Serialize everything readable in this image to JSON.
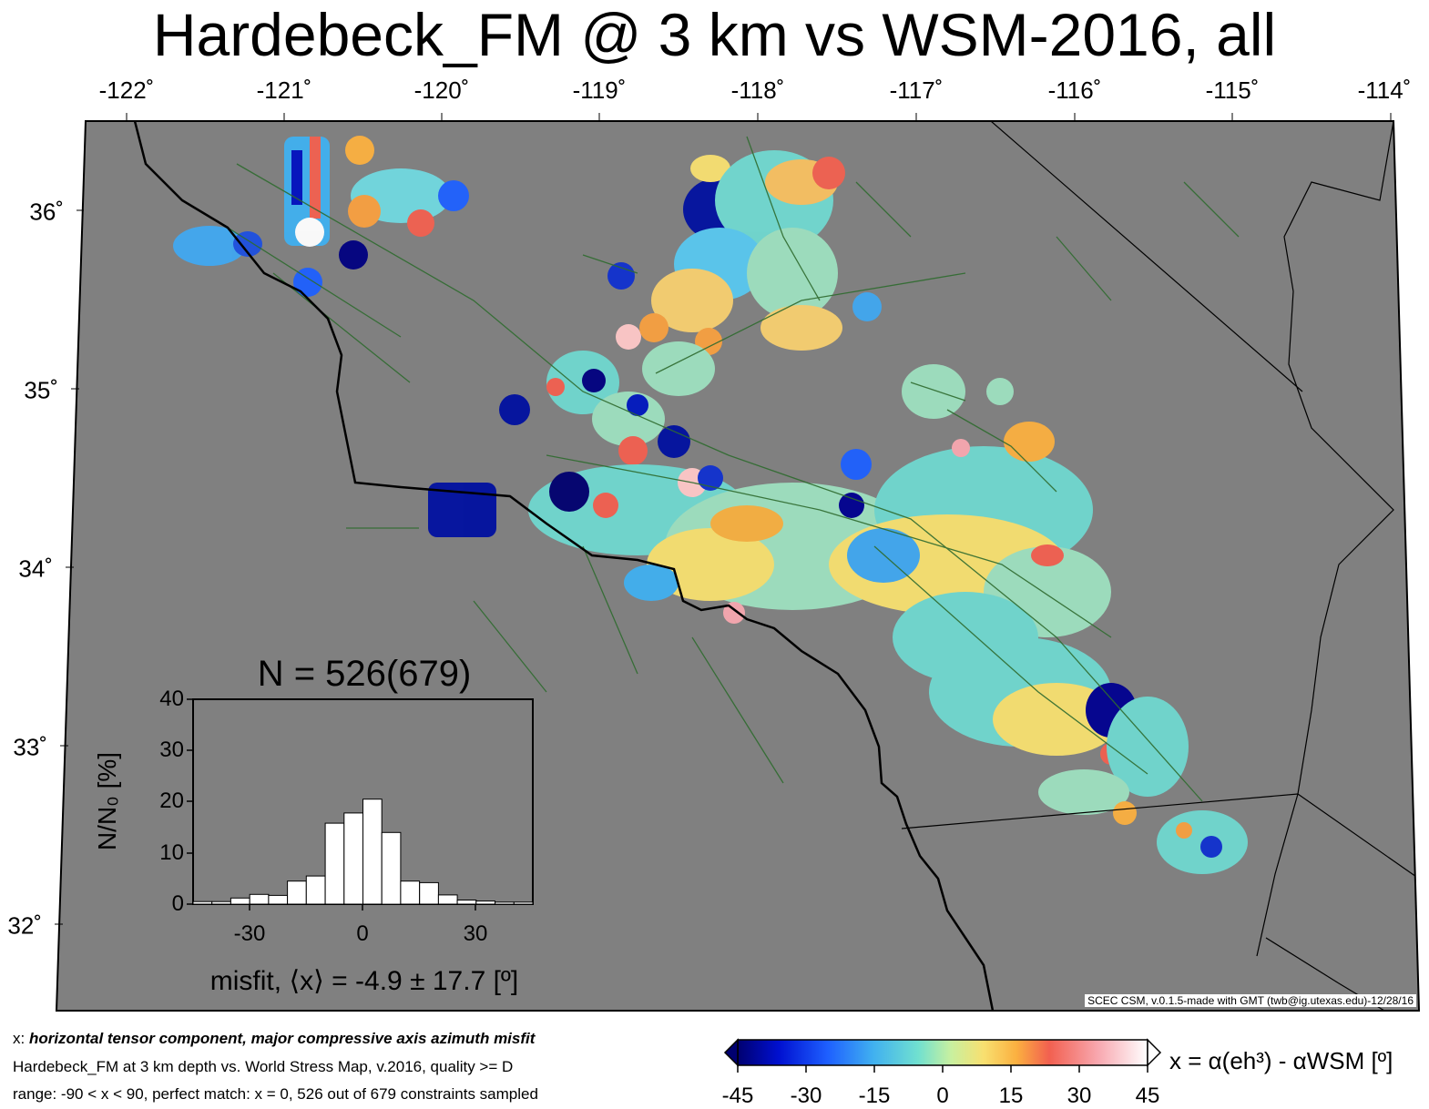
{
  "title": "Hardebeck_FM @ 3 km vs WSM-2016, all",
  "axes": {
    "lon_ticks": [
      "-122˚",
      "-121˚",
      "-120˚",
      "-119˚",
      "-118˚",
      "-117˚",
      "-116˚",
      "-115˚",
      "-114˚"
    ],
    "lat_ticks": [
      "36˚",
      "35˚",
      "34˚",
      "33˚",
      "32˚"
    ]
  },
  "credit": "SCEC CSM, v.0.1.5-made with GMT (twb@ig.utexas.edu)-12/28/16",
  "colors": {
    "map_background": "#808080",
    "coastline": "#000000",
    "faults": "#2f6b2f",
    "histogram_bar": "#ffffff"
  },
  "histogram": {
    "title": "N = 526(679)",
    "ylabel": "N/N₀ [%]",
    "xlabel": "misfit, ⟨x⟩ = -4.9 ± 17.7 [º]",
    "y_ticks": [
      "0",
      "10",
      "20",
      "30",
      "40"
    ],
    "x_ticks": [
      "-30",
      "0",
      "30"
    ]
  },
  "chart_data": {
    "type": "bar",
    "title": "N = 526(679)",
    "xlabel": "misfit, ⟨x⟩ = -4.9 ± 17.7 [º]",
    "ylabel": "N/N₀ [%]",
    "x_bin_centers": [
      -42.5,
      -37.5,
      -32.5,
      -27.5,
      -22.5,
      -17.5,
      -12.5,
      -7.5,
      -2.5,
      2.5,
      7.5,
      12.5,
      17.5,
      22.5,
      27.5,
      32.5,
      37.5,
      42.5
    ],
    "values": [
      0.5,
      0.5,
      1.2,
      1.9,
      1.7,
      4.5,
      5.5,
      15.8,
      17.8,
      20.5,
      14.0,
      4.5,
      4.2,
      1.8,
      0.8,
      0.6,
      0.4,
      0.4
    ],
    "xlim": [
      -45,
      45
    ],
    "ylim": [
      0,
      40
    ],
    "grid": false
  },
  "colorbar": {
    "label": "x = α(eh³) - αWSM [º]",
    "ticks": [
      "-45",
      "-30",
      "-15",
      "0",
      "15",
      "30",
      "45"
    ],
    "range": [
      -45,
      45
    ]
  },
  "description": {
    "line1_prefix": "x: ",
    "line1_emph": "horizontal tensor component, major compressive axis azimuth misfit",
    "line2": "Hardebeck_FM at 3 km depth vs.  World Stress Map, v.2016, quality >= D",
    "line3": "range: -90 < x < 90, perfect match: x = 0, 526 out of 679 constraints sampled"
  }
}
